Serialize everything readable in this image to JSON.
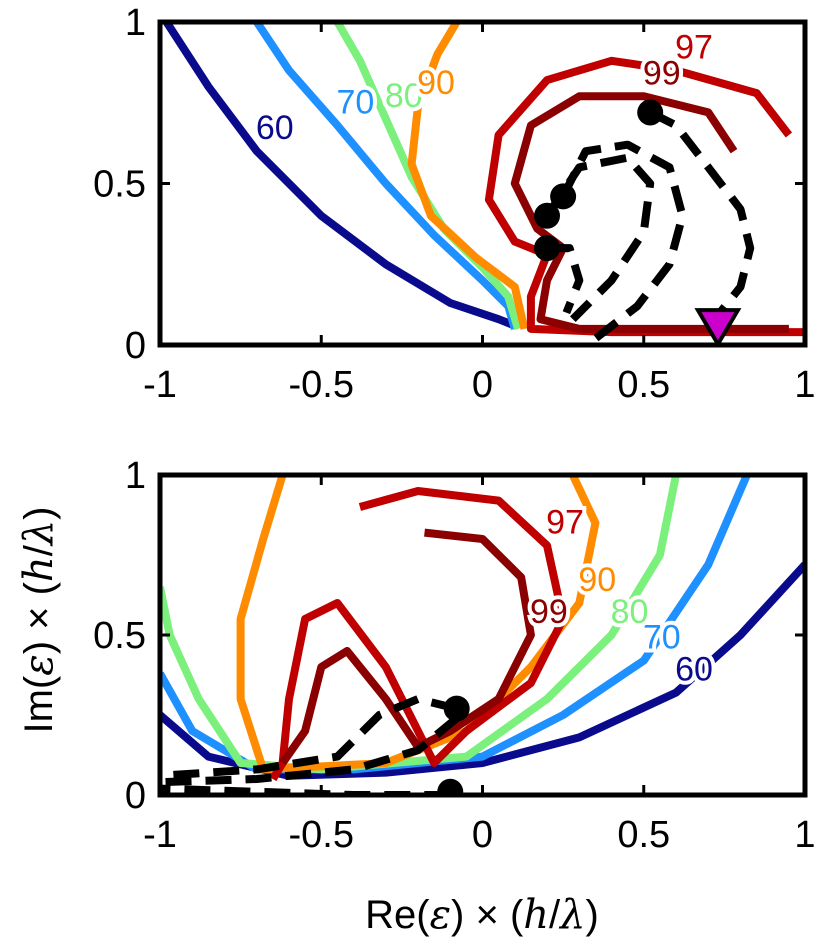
{
  "chart_data": [
    {
      "type": "line",
      "panel": "top",
      "xlim": [
        -1,
        1
      ],
      "ylim": [
        0,
        1
      ],
      "xticks": [
        "-1",
        "-0.5",
        "0",
        "0.5",
        "1"
      ],
      "yticks": [
        "0",
        "0.5",
        "1"
      ],
      "grid": false,
      "contour_levels": [
        {
          "label": "60",
          "color": "#0a0a8c",
          "points": [
            [
              -0.98,
              1.0
            ],
            [
              -0.85,
              0.8
            ],
            [
              -0.7,
              0.6
            ],
            [
              -0.5,
              0.4
            ],
            [
              -0.3,
              0.25
            ],
            [
              -0.1,
              0.13
            ],
            [
              0.05,
              0.08
            ],
            [
              0.1,
              0.06
            ]
          ]
        },
        {
          "label": "70",
          "color": "#1e90ff",
          "points": [
            [
              -0.7,
              1.0
            ],
            [
              -0.6,
              0.85
            ],
            [
              -0.45,
              0.68
            ],
            [
              -0.3,
              0.5
            ],
            [
              -0.15,
              0.34
            ],
            [
              0.0,
              0.2
            ],
            [
              0.08,
              0.12
            ],
            [
              0.1,
              0.05
            ]
          ]
        },
        {
          "label": "80",
          "color": "#7cf07c",
          "points": [
            [
              -0.45,
              1.0
            ],
            [
              -0.38,
              0.88
            ],
            [
              -0.3,
              0.7
            ],
            [
              -0.22,
              0.52
            ],
            [
              -0.12,
              0.36
            ],
            [
              0.0,
              0.24
            ],
            [
              0.08,
              0.15
            ],
            [
              0.11,
              0.05
            ]
          ]
        },
        {
          "label": "90",
          "color": "#ff8c00",
          "points": [
            [
              -0.08,
              1.0
            ],
            [
              -0.14,
              0.9
            ],
            [
              -0.2,
              0.74
            ],
            [
              -0.22,
              0.56
            ],
            [
              -0.16,
              0.4
            ],
            [
              -0.02,
              0.27
            ],
            [
              0.1,
              0.18
            ],
            [
              0.13,
              0.05
            ]
          ]
        },
        {
          "label": "97",
          "color": "#c00000",
          "points": [
            [
              0.95,
              0.65
            ],
            [
              0.85,
              0.78
            ],
            [
              0.6,
              0.85
            ],
            [
              0.4,
              0.88
            ],
            [
              0.2,
              0.82
            ],
            [
              0.05,
              0.65
            ],
            [
              0.02,
              0.45
            ],
            [
              0.1,
              0.32
            ],
            [
              0.2,
              0.28
            ],
            [
              0.15,
              0.15
            ],
            [
              0.15,
              0.05
            ],
            [
              0.4,
              0.04
            ],
            [
              0.7,
              0.04
            ],
            [
              1.0,
              0.04
            ]
          ]
        },
        {
          "label": "99",
          "color": "#8b0000",
          "points": [
            [
              0.78,
              0.6
            ],
            [
              0.7,
              0.72
            ],
            [
              0.5,
              0.77
            ],
            [
              0.3,
              0.77
            ],
            [
              0.15,
              0.68
            ],
            [
              0.1,
              0.5
            ],
            [
              0.17,
              0.36
            ],
            [
              0.25,
              0.3
            ],
            [
              0.2,
              0.2
            ],
            [
              0.18,
              0.08
            ],
            [
              0.3,
              0.05
            ],
            [
              0.6,
              0.05
            ],
            [
              0.95,
              0.05
            ]
          ]
        }
      ],
      "dashed_paths": [
        [
          [
            0.52,
            0.72
          ],
          [
            0.6,
            0.68
          ],
          [
            0.7,
            0.55
          ],
          [
            0.8,
            0.42
          ],
          [
            0.83,
            0.3
          ],
          [
            0.8,
            0.18
          ],
          [
            0.72,
            0.08
          ]
        ],
        [
          [
            0.25,
            0.46
          ],
          [
            0.32,
            0.6
          ],
          [
            0.45,
            0.62
          ],
          [
            0.58,
            0.55
          ],
          [
            0.62,
            0.4
          ],
          [
            0.58,
            0.25
          ],
          [
            0.48,
            0.12
          ],
          [
            0.35,
            0.02
          ]
        ],
        [
          [
            0.2,
            0.4
          ],
          [
            0.3,
            0.55
          ],
          [
            0.45,
            0.58
          ],
          [
            0.52,
            0.5
          ],
          [
            0.5,
            0.35
          ],
          [
            0.4,
            0.2
          ],
          [
            0.28,
            0.08
          ]
        ],
        [
          [
            0.2,
            0.3
          ],
          [
            0.27,
            0.3
          ],
          [
            0.3,
            0.2
          ],
          [
            0.26,
            0.1
          ]
        ]
      ],
      "markers": [
        [
          0.52,
          0.72
        ],
        [
          0.25,
          0.46
        ],
        [
          0.2,
          0.4
        ],
        [
          0.2,
          0.3
        ]
      ],
      "special_marker": {
        "x": 0.73,
        "y": 0.04,
        "shape": "triangle-down",
        "color": "#cc00cc"
      }
    },
    {
      "type": "line",
      "panel": "bottom",
      "xlim": [
        -1,
        1
      ],
      "ylim": [
        0,
        1
      ],
      "xticks": [
        "-1",
        "-0.5",
        "0",
        "0.5",
        "1"
      ],
      "yticks": [
        "0",
        "0.5",
        "1"
      ],
      "grid": false,
      "contour_levels": [
        {
          "label": "60",
          "color": "#0a0a8c",
          "points": [
            [
              1.0,
              0.72
            ],
            [
              0.8,
              0.5
            ],
            [
              0.6,
              0.32
            ],
            [
              0.3,
              0.18
            ],
            [
              0.0,
              0.1
            ],
            [
              -0.3,
              0.07
            ],
            [
              -0.6,
              0.06
            ],
            [
              -0.85,
              0.12
            ],
            [
              -1.0,
              0.25
            ]
          ]
        },
        {
          "label": "70",
          "color": "#1e90ff",
          "points": [
            [
              0.82,
              1.0
            ],
            [
              0.7,
              0.72
            ],
            [
              0.5,
              0.42
            ],
            [
              0.25,
              0.25
            ],
            [
              0.0,
              0.12
            ],
            [
              -0.4,
              0.08
            ],
            [
              -0.7,
              0.08
            ],
            [
              -0.9,
              0.2
            ],
            [
              -1.0,
              0.38
            ]
          ]
        },
        {
          "label": "80",
          "color": "#7cf07c",
          "points": [
            [
              0.6,
              1.0
            ],
            [
              0.55,
              0.75
            ],
            [
              0.4,
              0.5
            ],
            [
              0.2,
              0.3
            ],
            [
              -0.05,
              0.12
            ],
            [
              -0.5,
              0.08
            ],
            [
              -0.75,
              0.1
            ],
            [
              -0.88,
              0.3
            ],
            [
              -0.97,
              0.5
            ],
            [
              -1.0,
              0.65
            ]
          ]
        },
        {
          "label": "90",
          "color": "#ff8c00",
          "points": [
            [
              0.28,
              1.0
            ],
            [
              0.35,
              0.85
            ],
            [
              0.3,
              0.6
            ],
            [
              0.15,
              0.4
            ],
            [
              -0.05,
              0.2
            ],
            [
              -0.3,
              0.1
            ],
            [
              -0.68,
              0.08
            ],
            [
              -0.75,
              0.3
            ],
            [
              -0.75,
              0.55
            ],
            [
              -0.68,
              0.8
            ],
            [
              -0.62,
              1.0
            ]
          ]
        },
        {
          "label": "97",
          "color": "#c00000",
          "points": [
            [
              -0.38,
              0.9
            ],
            [
              -0.2,
              0.95
            ],
            [
              0.05,
              0.92
            ],
            [
              0.2,
              0.78
            ],
            [
              0.25,
              0.55
            ],
            [
              0.15,
              0.35
            ],
            [
              -0.05,
              0.2
            ],
            [
              -0.15,
              0.1
            ],
            [
              -0.2,
              0.2
            ],
            [
              -0.3,
              0.4
            ],
            [
              -0.45,
              0.6
            ],
            [
              -0.55,
              0.55
            ],
            [
              -0.6,
              0.3
            ],
            [
              -0.62,
              0.1
            ],
            [
              -0.65,
              0.05
            ]
          ]
        },
        {
          "label": "99",
          "color": "#8b0000",
          "points": [
            [
              -0.18,
              0.82
            ],
            [
              0.0,
              0.8
            ],
            [
              0.12,
              0.68
            ],
            [
              0.15,
              0.5
            ],
            [
              0.05,
              0.3
            ],
            [
              -0.1,
              0.2
            ],
            [
              -0.2,
              0.15
            ],
            [
              -0.3,
              0.3
            ],
            [
              -0.42,
              0.45
            ],
            [
              -0.5,
              0.4
            ],
            [
              -0.55,
              0.2
            ],
            [
              -0.62,
              0.1
            ]
          ]
        }
      ],
      "dashed_paths": [
        [
          [
            -0.08,
            0.27
          ],
          [
            -0.2,
            0.3
          ],
          [
            -0.32,
            0.25
          ],
          [
            -0.45,
            0.12
          ],
          [
            -0.7,
            0.08
          ],
          [
            -1.0,
            0.06
          ]
        ],
        [
          [
            -0.08,
            0.24
          ],
          [
            -0.2,
            0.14
          ],
          [
            -0.4,
            0.08
          ],
          [
            -0.7,
            0.05
          ],
          [
            -1.0,
            0.04
          ]
        ],
        [
          [
            -0.1,
            0.0
          ],
          [
            -0.4,
            0.0
          ],
          [
            -0.7,
            0.01
          ],
          [
            -1.0,
            0.02
          ]
        ]
      ],
      "markers": [
        [
          -0.08,
          0.27
        ],
        [
          -0.1,
          0.01
        ]
      ]
    }
  ],
  "axes": {
    "ylabel_prefix": "Im(",
    "ylabel_eps": "ε",
    "ylabel_mid": ")  × (",
    "ylabel_h": "h",
    "ylabel_slash": "/",
    "ylabel_lambda": "λ",
    "ylabel_end": ")",
    "xlabel_prefix": "Re(",
    "xlabel_eps": "ε",
    "xlabel_mid": ")  × (",
    "xlabel_h": "h",
    "xlabel_slash": "/",
    "xlabel_lambda": "λ",
    "xlabel_end": ")"
  }
}
